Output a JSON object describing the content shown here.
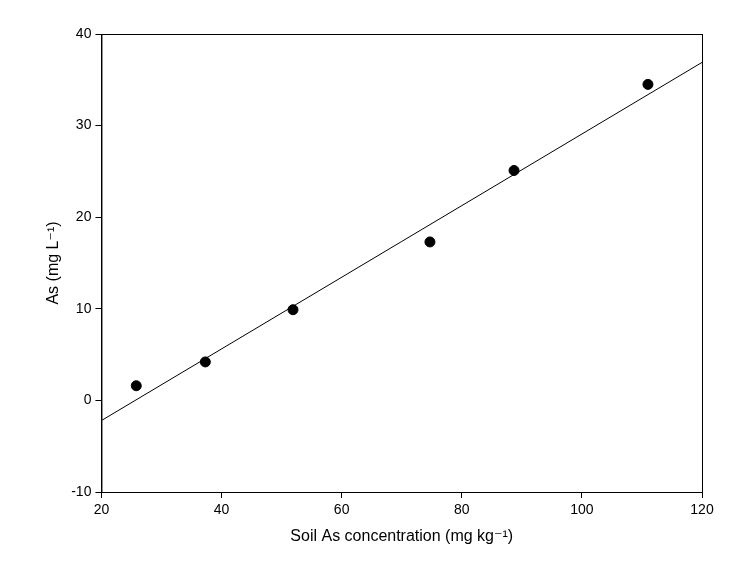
{
  "chart_data": {
    "type": "scatter",
    "x_label": "Soil As concentration (mg kg⁻¹)",
    "y_label": "As (mg L⁻¹)",
    "xlim": [
      20,
      120
    ],
    "xticks": [
      20,
      40,
      60,
      80,
      100,
      120
    ],
    "ylim": [
      -10,
      40
    ],
    "yticks": [
      -10,
      0,
      10,
      20,
      30,
      40
    ],
    "grid": false,
    "series": [
      {
        "type": "scatter",
        "marker": "circle",
        "color": "#000000",
        "x": [
          25.8,
          37.3,
          51.9,
          74.7,
          88.7,
          111.0
        ],
        "values": [
          1.6,
          4.2,
          9.9,
          17.3,
          25.1,
          34.5
        ]
      },
      {
        "type": "line",
        "line_style": "solid",
        "color": "#000000",
        "x": [
          20,
          120
        ],
        "values": [
          -2.2,
          36.9
        ]
      }
    ]
  }
}
